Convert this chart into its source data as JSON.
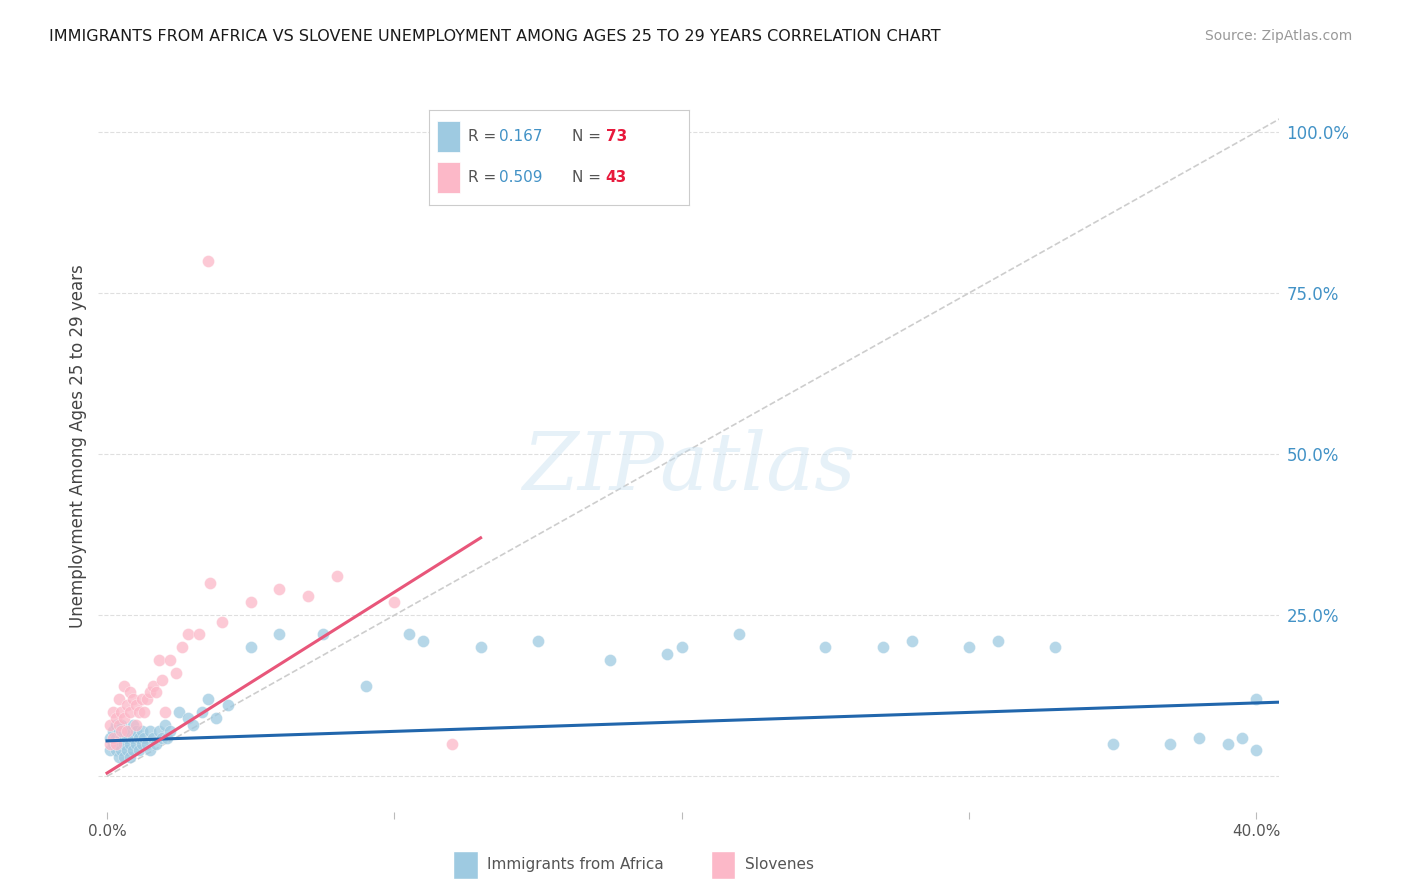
{
  "title": "IMMIGRANTS FROM AFRICA VS SLOVENE UNEMPLOYMENT AMONG AGES 25 TO 29 YEARS CORRELATION CHART",
  "source": "Source: ZipAtlas.com",
  "ylabel_left": "Unemployment Among Ages 25 to 29 years",
  "color_blue": "#9ecae1",
  "color_pink": "#fcb8c8",
  "color_blue_line": "#2166ac",
  "color_pink_line": "#e8567a",
  "color_dashed": "#c8c8c8",
  "color_right_axis": "#4292c6",
  "color_grid": "#d8d8d8",
  "R_africa": 0.167,
  "N_africa": 73,
  "R_slovene": 0.509,
  "N_slovene": 43,
  "legend_r_color": "#4292c6",
  "legend_n_color": "#e8193c",
  "xlim_min": -0.003,
  "xlim_max": 0.408,
  "ylim_min": -0.055,
  "ylim_max": 1.08,
  "yticks": [
    0.0,
    0.25,
    0.5,
    0.75,
    1.0
  ],
  "yticklabels_right": [
    "",
    "25.0%",
    "50.0%",
    "75.0%",
    "100.0%"
  ],
  "xticks": [
    0.0,
    0.1,
    0.2,
    0.3,
    0.4
  ],
  "xticklabels": [
    "0.0%",
    "",
    "",
    "",
    "40.0%"
  ],
  "africa_x": [
    0.001,
    0.001,
    0.002,
    0.002,
    0.003,
    0.003,
    0.003,
    0.004,
    0.004,
    0.004,
    0.005,
    0.005,
    0.005,
    0.006,
    0.006,
    0.006,
    0.007,
    0.007,
    0.008,
    0.008,
    0.008,
    0.009,
    0.009,
    0.009,
    0.01,
    0.01,
    0.011,
    0.011,
    0.012,
    0.012,
    0.013,
    0.014,
    0.015,
    0.015,
    0.016,
    0.017,
    0.018,
    0.019,
    0.02,
    0.021,
    0.022,
    0.025,
    0.028,
    0.03,
    0.033,
    0.035,
    0.038,
    0.042,
    0.05,
    0.06,
    0.075,
    0.09,
    0.11,
    0.13,
    0.15,
    0.175,
    0.2,
    0.22,
    0.25,
    0.28,
    0.3,
    0.33,
    0.35,
    0.37,
    0.38,
    0.39,
    0.395,
    0.4,
    0.31,
    0.4,
    0.105,
    0.195,
    0.27
  ],
  "africa_y": [
    0.04,
    0.06,
    0.05,
    0.07,
    0.04,
    0.06,
    0.08,
    0.05,
    0.07,
    0.03,
    0.06,
    0.04,
    0.08,
    0.05,
    0.07,
    0.03,
    0.06,
    0.04,
    0.05,
    0.07,
    0.03,
    0.06,
    0.04,
    0.08,
    0.05,
    0.07,
    0.06,
    0.04,
    0.07,
    0.05,
    0.06,
    0.05,
    0.07,
    0.04,
    0.06,
    0.05,
    0.07,
    0.06,
    0.08,
    0.06,
    0.07,
    0.1,
    0.09,
    0.08,
    0.1,
    0.12,
    0.09,
    0.11,
    0.2,
    0.22,
    0.22,
    0.14,
    0.21,
    0.2,
    0.21,
    0.18,
    0.2,
    0.22,
    0.2,
    0.21,
    0.2,
    0.2,
    0.05,
    0.05,
    0.06,
    0.05,
    0.06,
    0.12,
    0.21,
    0.04,
    0.22,
    0.19,
    0.2
  ],
  "slovene_x": [
    0.001,
    0.001,
    0.002,
    0.002,
    0.003,
    0.003,
    0.004,
    0.004,
    0.005,
    0.005,
    0.006,
    0.006,
    0.007,
    0.007,
    0.008,
    0.008,
    0.009,
    0.01,
    0.01,
    0.011,
    0.012,
    0.013,
    0.014,
    0.015,
    0.016,
    0.017,
    0.018,
    0.019,
    0.02,
    0.022,
    0.024,
    0.026,
    0.028,
    0.032,
    0.036,
    0.04,
    0.05,
    0.06,
    0.07,
    0.08,
    0.1,
    0.12,
    0.035
  ],
  "slovene_y": [
    0.05,
    0.08,
    0.06,
    0.1,
    0.05,
    0.09,
    0.08,
    0.12,
    0.07,
    0.1,
    0.09,
    0.14,
    0.07,
    0.11,
    0.1,
    0.13,
    0.12,
    0.08,
    0.11,
    0.1,
    0.12,
    0.1,
    0.12,
    0.13,
    0.14,
    0.13,
    0.18,
    0.15,
    0.1,
    0.18,
    0.16,
    0.2,
    0.22,
    0.22,
    0.3,
    0.24,
    0.27,
    0.29,
    0.28,
    0.31,
    0.27,
    0.05,
    0.8
  ],
  "africa_trend_x": [
    0.0,
    0.408
  ],
  "africa_trend_y": [
    0.055,
    0.115
  ],
  "slovene_trend_x": [
    0.0,
    0.13
  ],
  "slovene_trend_y": [
    0.005,
    0.37
  ],
  "dashed_line_x": [
    0.0,
    0.408
  ],
  "dashed_line_y": [
    0.0,
    1.02
  ]
}
